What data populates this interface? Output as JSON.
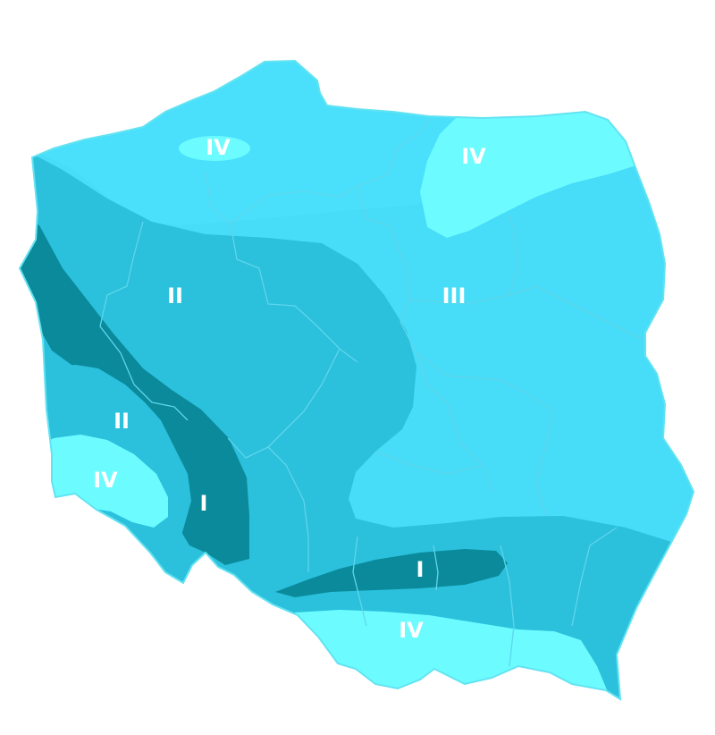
{
  "map": {
    "colors": {
      "outline": "#63e3f2",
      "zone_I": "#0a8a9b",
      "zone_II": "#2bc0dc",
      "zone_III": "#47dcf7",
      "zone_IV": "#6cfcff",
      "borders": "#5ed6ec"
    },
    "zones": [
      {
        "key": "iv_north_west",
        "label": "IV"
      },
      {
        "key": "iv_north_east",
        "label": "IV"
      },
      {
        "key": "ii_west",
        "label": "II"
      },
      {
        "key": "iii_east",
        "label": "III"
      },
      {
        "key": "ii_south_west",
        "label": "II"
      },
      {
        "key": "iv_south_west",
        "label": "IV"
      },
      {
        "key": "i_west",
        "label": "I"
      },
      {
        "key": "i_south",
        "label": "I"
      },
      {
        "key": "iv_south",
        "label": "IV"
      }
    ]
  }
}
